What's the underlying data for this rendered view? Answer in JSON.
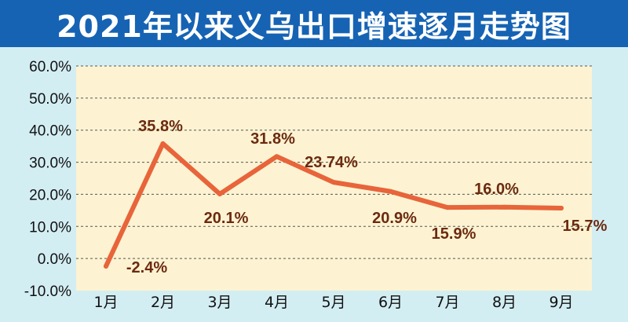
{
  "title": "2021年以来义乌出口增速逐月走势图",
  "colors": {
    "background": "#d3eef3",
    "title_bar": "#1663b4",
    "title_text": "#ffffff",
    "plot_area": "#fdf3d2",
    "gridline": "#555555",
    "line": "#e8643a",
    "data_label": "#6b2a10"
  },
  "chart_data": {
    "type": "line",
    "title": "2021年以来义乌出口增速逐月走势图",
    "categories": [
      "1月",
      "2月",
      "3月",
      "4月",
      "5月",
      "6月",
      "7月",
      "8月",
      "9月"
    ],
    "series": [
      {
        "values": [
          -2.4,
          35.8,
          20.1,
          31.8,
          23.74,
          20.9,
          15.9,
          16.0,
          15.7
        ],
        "labels": [
          "-2.4%",
          "35.8%",
          "20.1%",
          "31.8%",
          "23.74%",
          "20.9%",
          "15.9%",
          "16.0%",
          "15.7%"
        ]
      }
    ],
    "y_ticks": [
      "60.0%",
      "50.0%",
      "40.0%",
      "30.0%",
      "20.0%",
      "10.0%",
      "0.0%",
      "-10.0%"
    ],
    "ylim": [
      -10,
      60
    ],
    "grid": true,
    "legend": "none"
  }
}
